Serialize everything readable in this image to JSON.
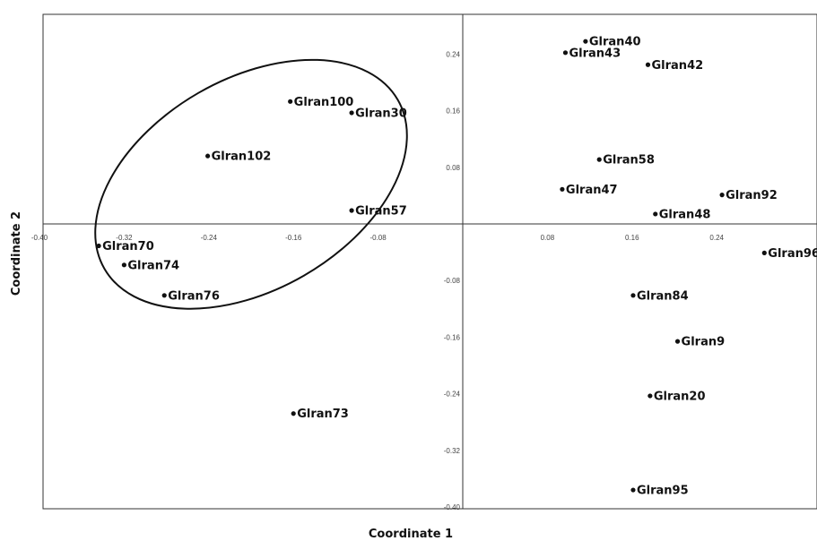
{
  "chart_data": {
    "type": "scatter",
    "xlabel": "Coordinate  1",
    "ylabel": "Coordinate  2",
    "xlim": [
      -0.4,
      0.4
    ],
    "ylim": [
      -0.4,
      0.24
    ],
    "x_ticks": [
      -0.4,
      -0.32,
      -0.24,
      -0.16,
      -0.08,
      0.08,
      0.16,
      0.24
    ],
    "x_tick_labels": [
      "-0.40",
      "-0.32",
      "-0.24",
      "-0.16",
      "-0.08",
      "0.08",
      "0.16",
      "0.24"
    ],
    "y_ticks": [
      0.24,
      0.16,
      0.08,
      -0.08,
      -0.16,
      -0.24,
      -0.32,
      -0.4
    ],
    "y_tick_labels": [
      "0.24",
      "0.16",
      "0.08",
      "-0.08",
      "-0.16",
      "-0.24",
      "-0.32",
      "-0.40"
    ],
    "grid": false,
    "points": [
      {
        "label": "Glran40",
        "x": 0.116,
        "y": 0.258
      },
      {
        "label": "Glran43",
        "x": 0.097,
        "y": 0.242
      },
      {
        "label": "Glran42",
        "x": 0.175,
        "y": 0.225
      },
      {
        "label": "Glran100",
        "x": -0.163,
        "y": 0.173
      },
      {
        "label": "Glran30",
        "x": -0.105,
        "y": 0.157
      },
      {
        "label": "Glran102",
        "x": -0.241,
        "y": 0.096
      },
      {
        "label": "Glran58",
        "x": 0.129,
        "y": 0.091
      },
      {
        "label": "Glran47",
        "x": 0.094,
        "y": 0.049
      },
      {
        "label": "Glran92",
        "x": 0.245,
        "y": 0.041
      },
      {
        "label": "Glran57",
        "x": -0.105,
        "y": 0.019
      },
      {
        "label": "Glran48",
        "x": 0.182,
        "y": 0.014
      },
      {
        "label": "Glran70",
        "x": -0.344,
        "y": -0.031
      },
      {
        "label": "Glran96",
        "x": 0.285,
        "y": -0.041
      },
      {
        "label": "Glran74",
        "x": -0.32,
        "y": -0.058
      },
      {
        "label": "Glran76",
        "x": -0.282,
        "y": -0.101
      },
      {
        "label": "Glran84",
        "x": 0.161,
        "y": -0.101
      },
      {
        "label": "Glran9",
        "x": 0.203,
        "y": -0.166
      },
      {
        "label": "Glran20",
        "x": 0.177,
        "y": -0.243
      },
      {
        "label": "Glran73",
        "x": -0.16,
        "y": -0.268
      },
      {
        "label": "Glran95",
        "x": 0.161,
        "y": -0.376
      }
    ],
    "grouping_ellipse": {
      "center_x": -0.2,
      "center_y": 0.056,
      "semi_axis_x": 0.16,
      "semi_axis_y": 0.149,
      "rotation_deg": -30
    }
  }
}
